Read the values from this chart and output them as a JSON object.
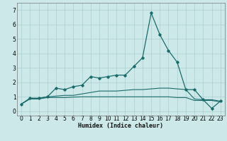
{
  "xlabel": "Humidex (Indice chaleur)",
  "background_color": "#cce8e8",
  "grid_color": "#aacfcf",
  "line_color": "#1a6b6b",
  "xlim": [
    -0.5,
    23.5
  ],
  "ylim": [
    -0.3,
    7.5
  ],
  "xticks": [
    0,
    1,
    2,
    3,
    4,
    5,
    6,
    7,
    8,
    9,
    10,
    11,
    12,
    13,
    14,
    15,
    16,
    17,
    18,
    19,
    20,
    21,
    22,
    23
  ],
  "yticks": [
    0,
    1,
    2,
    3,
    4,
    5,
    6,
    7
  ],
  "series1_x": [
    0,
    1,
    2,
    3,
    4,
    5,
    6,
    7,
    8,
    9,
    10,
    11,
    12,
    13,
    14,
    15,
    16,
    17,
    18,
    19,
    20,
    21,
    22,
    23
  ],
  "series1_y": [
    0.5,
    0.9,
    0.9,
    1.0,
    1.6,
    1.5,
    1.7,
    1.8,
    2.4,
    2.3,
    2.4,
    2.5,
    2.5,
    3.1,
    3.7,
    6.8,
    5.3,
    4.2,
    3.4,
    1.5,
    1.5,
    0.8,
    0.2,
    0.7
  ],
  "series2_x": [
    0,
    1,
    2,
    3,
    4,
    5,
    6,
    7,
    8,
    9,
    10,
    11,
    12,
    13,
    14,
    15,
    16,
    17,
    18,
    19,
    20,
    21,
    22,
    23
  ],
  "series2_y": [
    0.5,
    0.9,
    0.9,
    1.0,
    1.05,
    1.1,
    1.1,
    1.2,
    1.3,
    1.4,
    1.4,
    1.4,
    1.45,
    1.5,
    1.5,
    1.55,
    1.6,
    1.6,
    1.55,
    1.5,
    0.85,
    0.8,
    0.8,
    0.7
  ],
  "series3_x": [
    0,
    1,
    2,
    3,
    4,
    5,
    6,
    7,
    8,
    9,
    10,
    11,
    12,
    13,
    14,
    15,
    16,
    17,
    18,
    19,
    20,
    21,
    22,
    23
  ],
  "series3_y": [
    0.5,
    0.85,
    0.85,
    0.95,
    0.95,
    0.95,
    0.98,
    1.0,
    1.0,
    1.0,
    1.0,
    1.0,
    1.0,
    1.0,
    1.0,
    1.0,
    1.0,
    1.0,
    0.95,
    0.95,
    0.75,
    0.75,
    0.75,
    0.65
  ]
}
